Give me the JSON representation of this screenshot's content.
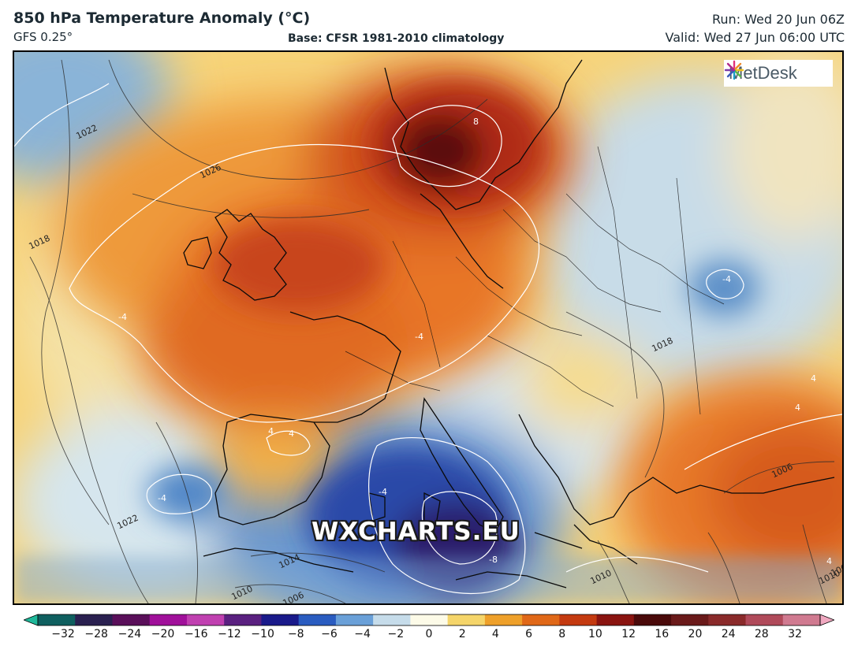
{
  "header": {
    "title": "850 hPa Temperature Anomaly (°C)",
    "model": "GFS 0.25°",
    "base": "Base: CFSR 1981-2010 climatology",
    "run": "Run: Wed 20 Jun 06Z",
    "valid": "Valid: Wed 27 Jun 06:00 UTC"
  },
  "logo": {
    "text": "MetDesk",
    "icon": "metdesk-logo-icon"
  },
  "watermark": "WXCHARTS.EU",
  "isobar_labels": [
    "1022",
    "1026",
    "1018",
    "1022",
    "1014",
    "1010",
    "1006",
    "1010",
    "1018",
    "1006",
    "1002",
    "1010"
  ],
  "anomaly_labels": [
    "8",
    "-4",
    "-4",
    "4",
    "-4",
    "4",
    "-4",
    "-4",
    "-8",
    "4",
    "4",
    "4"
  ],
  "colorbar": {
    "ticks": [
      "−32",
      "−28",
      "−24",
      "−20",
      "−16",
      "−12",
      "−10",
      "−8",
      "−6",
      "−4",
      "−2",
      "0",
      "2",
      "4",
      "6",
      "8",
      "10",
      "12",
      "16",
      "20",
      "24",
      "28",
      "32"
    ],
    "colors": [
      "#1fb89a",
      "#0f5f5f",
      "#2a2050",
      "#5a0f5a",
      "#a0109a",
      "#c040b0",
      "#5a2080",
      "#1a1a8a",
      "#2a5cc0",
      "#6aa0d8",
      "#c6dcea",
      "#fdfbe8",
      "#f5d56a",
      "#eea02a",
      "#e06818",
      "#c43a10",
      "#8a1410",
      "#4a0a0a",
      "#6a1a1a",
      "#8a2a2a",
      "#b04a5a",
      "#d07a90",
      "#f0a8c0"
    ]
  }
}
